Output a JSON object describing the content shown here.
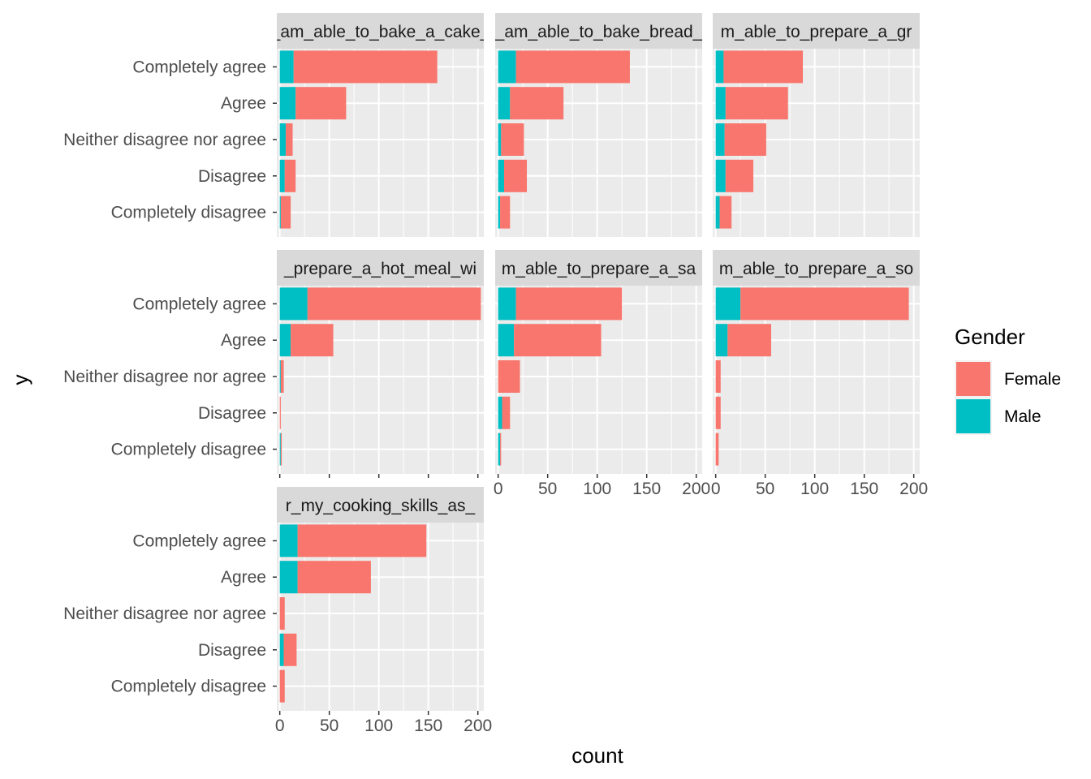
{
  "chart_data": {
    "type": "bar",
    "orientation": "horizontal",
    "stacked": true,
    "xlabel": "count",
    "ylabel": "y",
    "xlim": [
      -3,
      206
    ],
    "x_ticks": [
      0,
      50,
      100,
      150,
      200
    ],
    "x_tick_labels": [
      "0",
      "50",
      "100",
      "150",
      "200"
    ],
    "categories": [
      "Completely agree",
      "Agree",
      "Neither disagree nor agree",
      "Disagree",
      "Completely disagree"
    ],
    "grid": true,
    "legend": {
      "title": "Gender",
      "placement": "right",
      "items": [
        {
          "name": "Female",
          "color": "#F8766D"
        },
        {
          "name": "Male",
          "color": "#00BFC4"
        }
      ]
    },
    "colors": {
      "Female": "#F8766D",
      "Male": "#00BFC4",
      "panel_bg": "#EBEBEB",
      "strip_bg": "#D9D9D9"
    },
    "panels": [
      {
        "strip_label": "_am_able_to_bake_a_cake_",
        "series": [
          {
            "name": "Male",
            "values": [
              14,
              16,
              6,
              5,
              1
            ]
          },
          {
            "name": "Female",
            "values": [
              145,
              51,
              7,
              11,
              10
            ]
          }
        ]
      },
      {
        "strip_label": "_am_able_to_bake_bread_",
        "series": [
          {
            "name": "Male",
            "values": [
              18,
              12,
              3,
              6,
              2
            ]
          },
          {
            "name": "Female",
            "values": [
              115,
              54,
              23,
              23,
              10
            ]
          }
        ]
      },
      {
        "strip_label": "m_able_to_prepare_a_gr",
        "series": [
          {
            "name": "Male",
            "values": [
              8,
              10,
              9,
              10,
              4
            ]
          },
          {
            "name": "Female",
            "values": [
              80,
              63,
              42,
              28,
              12
            ]
          }
        ]
      },
      {
        "strip_label": "_prepare_a_hot_meal_wi",
        "series": [
          {
            "name": "Male",
            "values": [
              28,
              11,
              1,
              0,
              1
            ]
          },
          {
            "name": "Female",
            "values": [
              175,
              43,
              3,
              1,
              1
            ]
          }
        ]
      },
      {
        "strip_label": "m_able_to_prepare_a_sa",
        "series": [
          {
            "name": "Male",
            "values": [
              18,
              16,
              0,
              4,
              2
            ]
          },
          {
            "name": "Female",
            "values": [
              107,
              88,
              22,
              8,
              1
            ]
          }
        ]
      },
      {
        "strip_label": "m_able_to_prepare_a_so",
        "series": [
          {
            "name": "Male",
            "values": [
              25,
              12,
              0,
              0,
              0
            ]
          },
          {
            "name": "Female",
            "values": [
              170,
              44,
              5,
              5,
              3
            ]
          }
        ]
      },
      {
        "strip_label": "r_my_cooking_skills_as_",
        "series": [
          {
            "name": "Male",
            "values": [
              18,
              18,
              0,
              4,
              0
            ]
          },
          {
            "name": "Female",
            "values": [
              130,
              74,
              5,
              13,
              5
            ]
          }
        ]
      }
    ]
  }
}
